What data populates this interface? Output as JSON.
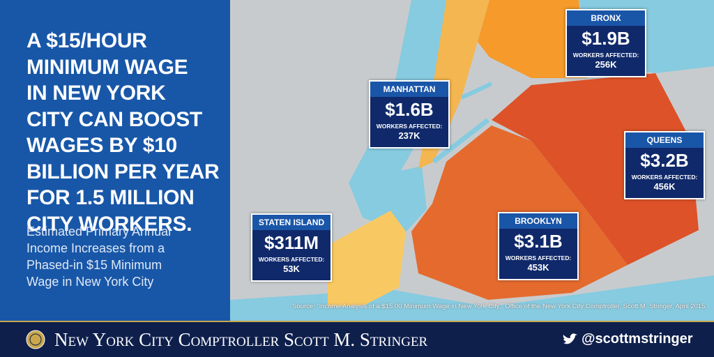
{
  "headline_lines": [
    "A $15/HOUR",
    "MINIMUM WAGE",
    "IN NEW YORK",
    "CITY CAN BOOST",
    "WAGES BY $10",
    "BILLION PER YEAR",
    "FOR 1.5 MILLION",
    "CITY WORKERS."
  ],
  "subtitle_lines": [
    "Estimated Primary Annual",
    "Income Increases from a",
    "Phased-in $15 Minimum",
    "Wage in New York City"
  ],
  "boroughs": [
    {
      "name": "MANHATTAN",
      "amount": "$1.6B",
      "workers_label": "WORKERS AFFECTED:",
      "workers": "237K"
    },
    {
      "name": "BRONX",
      "amount": "$1.9B",
      "workers_label": "WORKERS AFFECTED:",
      "workers": "256K"
    },
    {
      "name": "QUEENS",
      "amount": "$3.2B",
      "workers_label": "WORKERS AFFECTED:",
      "workers": "456K"
    },
    {
      "name": "STATEN ISLAND",
      "amount": "$311M",
      "workers_label": "WORKERS AFFECTED:",
      "workers": "53K"
    },
    {
      "name": "BROOKLYN",
      "amount": "$3.1B",
      "workers_label": "WORKERS AFFECTED:",
      "workers": "453K"
    }
  ],
  "source": "Source: “Income Analysis of a $15.00 Minimum Wage in New York City,” Office of the New York City Comptroller, Scott M. Stringer, April 2015.",
  "footer": {
    "title": "New York City Comptroller Scott M. Stringer",
    "handle": "@scottmstringer"
  }
}
